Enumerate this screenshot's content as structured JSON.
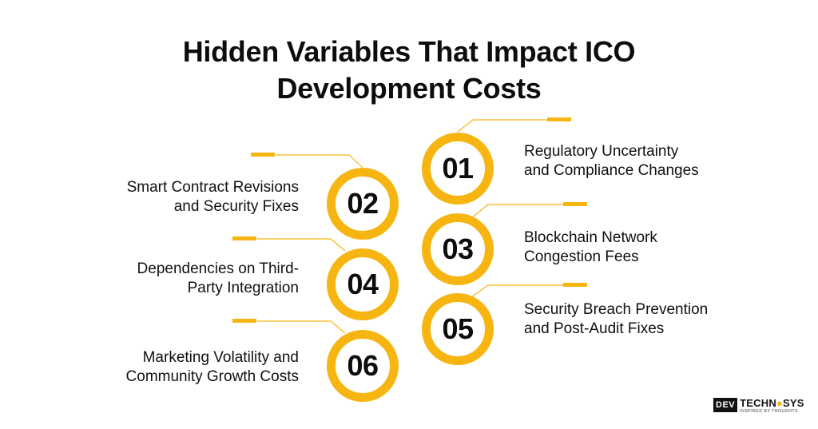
{
  "title": {
    "line1": "Hidden Variables That Impact ICO",
    "line2": "Development Costs"
  },
  "items": [
    {
      "num": "01",
      "line1": "Regulatory Uncertainty",
      "line2": "and Compliance Changes"
    },
    {
      "num": "02",
      "line1": "Smart Contract Revisions",
      "line2": "and Security Fixes"
    },
    {
      "num": "03",
      "line1": "Blockchain Network",
      "line2": "Congestion Fees"
    },
    {
      "num": "04",
      "line1": "Dependencies on Third-",
      "line2": "Party Integration"
    },
    {
      "num": "05",
      "line1": "Security Breach Prevention",
      "line2": "and Post-Audit Fixes"
    },
    {
      "num": "06",
      "line1": "Marketing Volatility and",
      "line2": "Community Growth Costs"
    }
  ],
  "logo": {
    "dev": "DEV",
    "brand_a": "TECHN",
    "brand_o": "●",
    "brand_b": "SYS",
    "tagline": "INSPIRED BY THOUGHTS"
  },
  "colors": {
    "accent": "#f7b512",
    "text": "#111111",
    "background": "#ffffff"
  }
}
